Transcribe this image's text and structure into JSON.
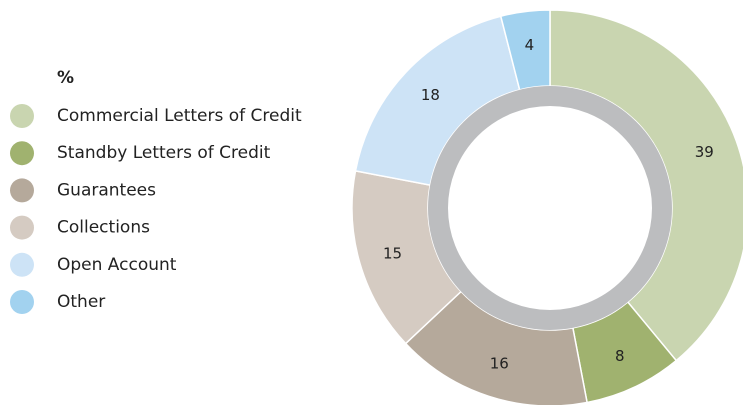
{
  "chart_data": {
    "type": "pie",
    "legend_title": "%",
    "categories": [
      "Commercial Letters of Credit",
      "Standby Letters of Credit",
      "Guarantees",
      "Collections",
      "Open Account",
      "Other"
    ],
    "values": [
      39,
      8,
      16,
      15,
      18,
      4
    ],
    "colors": [
      "#c9d5b0",
      "#a0b26f",
      "#b5a99b",
      "#d5cbc2",
      "#cde3f6",
      "#a2d2ef"
    ],
    "legend": "left"
  }
}
